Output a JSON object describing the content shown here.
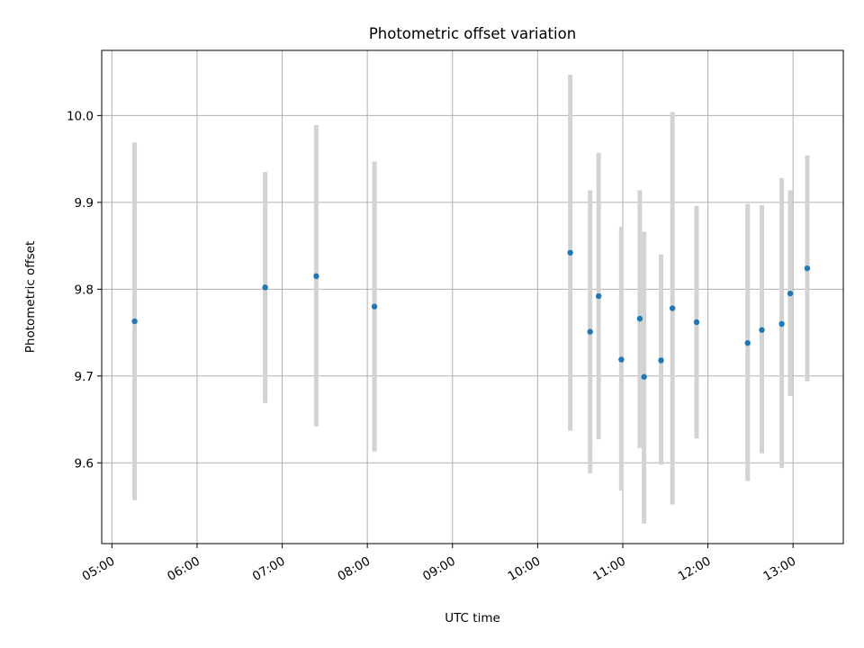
{
  "chart_data": {
    "type": "scatter",
    "title": "Photometric offset variation",
    "xlabel": "UTC time",
    "ylabel": "Photometric offset",
    "x_tick_labels": [
      "05:00",
      "06:00",
      "07:00",
      "08:00",
      "09:00",
      "10:00",
      "11:00",
      "12:00",
      "13:00"
    ],
    "x_ticks_hours": [
      5,
      6,
      7,
      8,
      9,
      10,
      11,
      12,
      13
    ],
    "xlim_hours": [
      4.88,
      13.59
    ],
    "y_ticks": [
      9.6,
      9.7,
      9.8,
      9.9,
      10.0
    ],
    "y_tick_labels": [
      "9.6",
      "9.7",
      "9.8",
      "9.9",
      "10.0"
    ],
    "ylim": [
      9.507,
      10.075
    ],
    "grid": true,
    "colors": {
      "points": "#1f77b4",
      "errorbars": "#d3d3d3",
      "grid": "#b0b0b0"
    },
    "points": [
      {
        "time": "05:16",
        "y": 9.763,
        "low": 9.557,
        "high": 9.969
      },
      {
        "time": "06:48",
        "y": 9.802,
        "low": 9.669,
        "high": 9.935
      },
      {
        "time": "07:24",
        "y": 9.815,
        "low": 9.642,
        "high": 9.989
      },
      {
        "time": "08:05",
        "y": 9.78,
        "low": 9.613,
        "high": 9.947
      },
      {
        "time": "10:23",
        "y": 9.842,
        "low": 9.637,
        "high": 10.047
      },
      {
        "time": "10:37",
        "y": 9.751,
        "low": 9.588,
        "high": 9.914
      },
      {
        "time": "10:43",
        "y": 9.792,
        "low": 9.627,
        "high": 9.957
      },
      {
        "time": "10:59",
        "y": 9.719,
        "low": 9.568,
        "high": 9.872
      },
      {
        "time": "11:12",
        "y": 9.766,
        "low": 9.617,
        "high": 9.914
      },
      {
        "time": "11:15",
        "y": 9.699,
        "low": 9.53,
        "high": 9.866
      },
      {
        "time": "11:27",
        "y": 9.718,
        "low": 9.598,
        "high": 9.84
      },
      {
        "time": "11:35",
        "y": 9.778,
        "low": 9.552,
        "high": 10.004
      },
      {
        "time": "11:52",
        "y": 9.762,
        "low": 9.628,
        "high": 9.896
      },
      {
        "time": "12:28",
        "y": 9.738,
        "low": 9.579,
        "high": 9.898
      },
      {
        "time": "12:38",
        "y": 9.753,
        "low": 9.611,
        "high": 9.897
      },
      {
        "time": "12:52",
        "y": 9.76,
        "low": 9.594,
        "high": 9.928
      },
      {
        "time": "12:58",
        "y": 9.795,
        "low": 9.677,
        "high": 9.914
      },
      {
        "time": "13:10",
        "y": 9.824,
        "low": 9.694,
        "high": 9.954
      }
    ]
  }
}
